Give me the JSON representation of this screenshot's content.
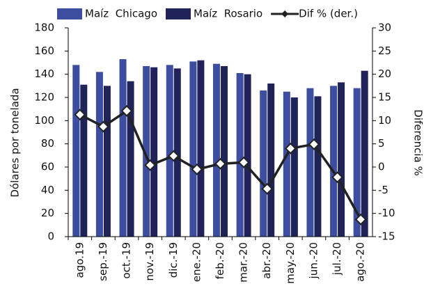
{
  "chart_data": {
    "type": "bar_line",
    "categories": [
      "ago.19",
      "sep.-19",
      "oct.-19",
      "nov.-19",
      "dic.-19",
      "ene.-20",
      "feb.-20",
      "mar.-20",
      "abr.-20",
      "may.-20",
      "jun.-20",
      "jul.-20",
      "ago.-20"
    ],
    "series": [
      {
        "name": "Maíz  Chicago",
        "color": "#3d4ea1",
        "type": "bar",
        "values": [
          148,
          142,
          153,
          147,
          148,
          151,
          149,
          141,
          126,
          125,
          128,
          130,
          128
        ]
      },
      {
        "name": "Maíz  Rosario",
        "color": "#1f2358",
        "type": "bar",
        "values": [
          131,
          130,
          134,
          146,
          145,
          152,
          147,
          140,
          132,
          120,
          121,
          133,
          143
        ]
      },
      {
        "name": "Dif % (der.)",
        "color": "#222222",
        "type": "line",
        "axis": "y2",
        "values": [
          11.3,
          8.7,
          12.1,
          0.4,
          2.4,
          -0.5,
          0.7,
          1.0,
          -4.7,
          4.0,
          4.9,
          -2.2,
          -11.3
        ]
      }
    ],
    "y_label": "Dólares por tonelada",
    "y2_label": "Diferencia %",
    "ylim": [
      0,
      180
    ],
    "yticks": [
      0,
      20,
      40,
      60,
      80,
      100,
      120,
      140,
      160,
      180
    ],
    "y2lim": [
      -15,
      30
    ],
    "y2ticks": [
      -15,
      -10,
      -5,
      0,
      5,
      10,
      15,
      20,
      25,
      30
    ]
  }
}
